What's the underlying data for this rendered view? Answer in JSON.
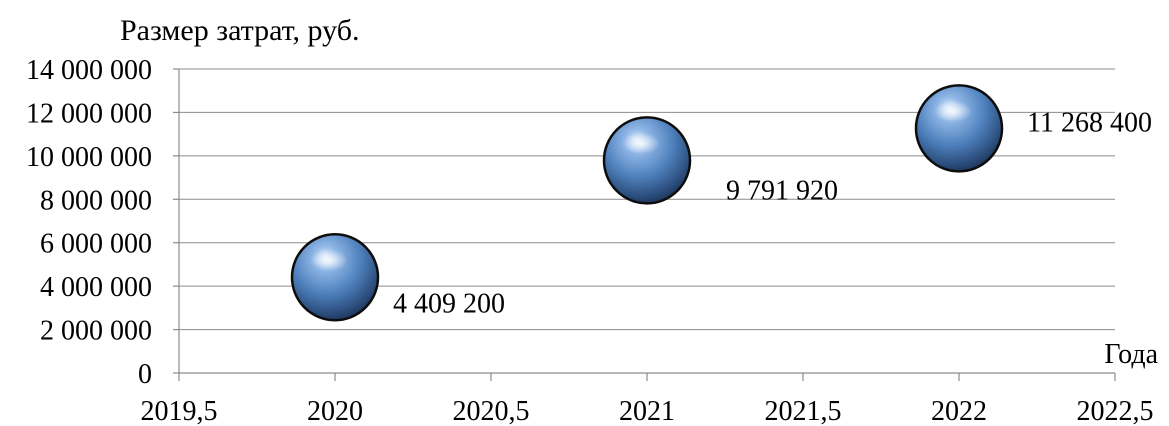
{
  "chart_data": {
    "type": "scatter",
    "title": "",
    "ylabel": "Размер затрат, руб.",
    "xlabel": "Года",
    "xlim": [
      2019.5,
      2022.5
    ],
    "ylim": [
      0,
      14000000
    ],
    "x_ticks": [
      2019.5,
      2020,
      2020.5,
      2021,
      2021.5,
      2022,
      2022.5
    ],
    "x_tick_labels": [
      "2019,5",
      "2020",
      "2020,5",
      "2021",
      "2021,5",
      "2022",
      "2022,5"
    ],
    "y_ticks": [
      0,
      2000000,
      4000000,
      6000000,
      8000000,
      10000000,
      12000000,
      14000000
    ],
    "y_tick_labels": [
      "0",
      "2 000 000",
      "4 000 000",
      "6 000 000",
      "8 000 000",
      "10 000 000",
      "12 000 000",
      "14 000 000"
    ],
    "grid": "horizontal",
    "marker": "sphere",
    "color": "#4f81bd",
    "points": [
      {
        "x": 2020,
        "y": 4409200,
        "label": "4 409 200"
      },
      {
        "x": 2021,
        "y": 9791920,
        "label": "9 791 920"
      },
      {
        "x": 2022,
        "y": 11268400,
        "label": "11 268 400"
      }
    ]
  }
}
